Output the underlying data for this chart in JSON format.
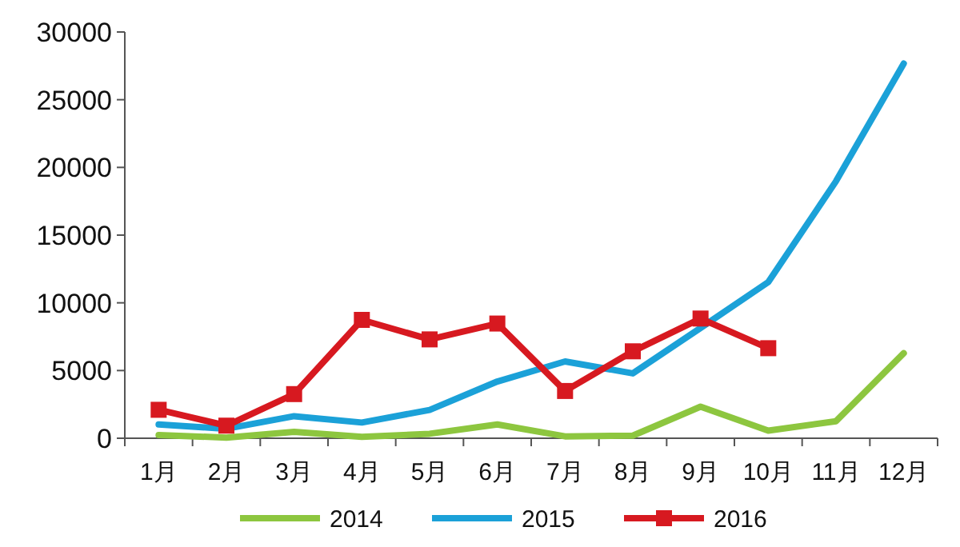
{
  "chart_data": {
    "type": "line",
    "categories": [
      "1月",
      "2月",
      "3月",
      "4月",
      "5月",
      "6月",
      "7月",
      "8月",
      "9月",
      "10月",
      "11月",
      "12月"
    ],
    "series": [
      {
        "name": "2014",
        "color": "#8dc63f",
        "marker": "none",
        "values": [
          230,
          50,
          470,
          100,
          330,
          1020,
          140,
          190,
          2330,
          560,
          1260,
          6280
        ]
      },
      {
        "name": "2015",
        "color": "#1ba1d8",
        "marker": "none",
        "values": [
          1020,
          700,
          1630,
          1160,
          2090,
          4190,
          5670,
          4790,
          8140,
          11530,
          18980,
          27670
        ]
      },
      {
        "name": "2016",
        "color": "#d71920",
        "marker": "square",
        "values": [
          2100,
          930,
          3260,
          8740,
          7300,
          8470,
          3490,
          6420,
          8840,
          6650,
          null,
          null
        ]
      }
    ],
    "ylim": [
      0,
      30000
    ],
    "yticks": [
      0,
      5000,
      10000,
      15000,
      20000,
      25000,
      30000
    ],
    "grid": false,
    "legend": "bottom"
  }
}
